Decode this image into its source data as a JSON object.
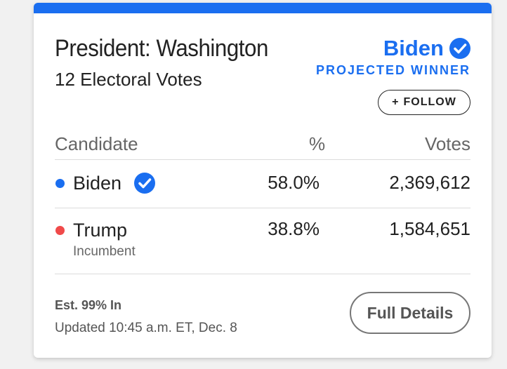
{
  "race": {
    "title": "President: Washington",
    "subtitle": "12 Electoral Votes"
  },
  "winner": {
    "name": "Biden",
    "label": "PROJECTED WINNER",
    "icon": "check-circle-icon"
  },
  "follow_button": {
    "icon": "+",
    "label": "FOLLOW"
  },
  "table": {
    "headers": [
      "Candidate",
      "%",
      "Votes"
    ],
    "rows": [
      {
        "candidate": "Biden",
        "note": "",
        "percent": "58.0%",
        "votes": "2,369,612",
        "dot_color": "#1a6ef0",
        "winner": true
      },
      {
        "candidate": "Trump",
        "note": "Incumbent",
        "percent": "38.8%",
        "votes": "1,584,651",
        "dot_color": "#f04a4a",
        "winner": false
      }
    ]
  },
  "footer": {
    "estimate": "Est. 99% In",
    "updated": "Updated 10:45 a.m. ET, Dec. 8",
    "details_button": "Full Details"
  },
  "colors": {
    "accent": "#1a6ef0",
    "dem": "#1a6ef0",
    "rep": "#f04a4a"
  }
}
